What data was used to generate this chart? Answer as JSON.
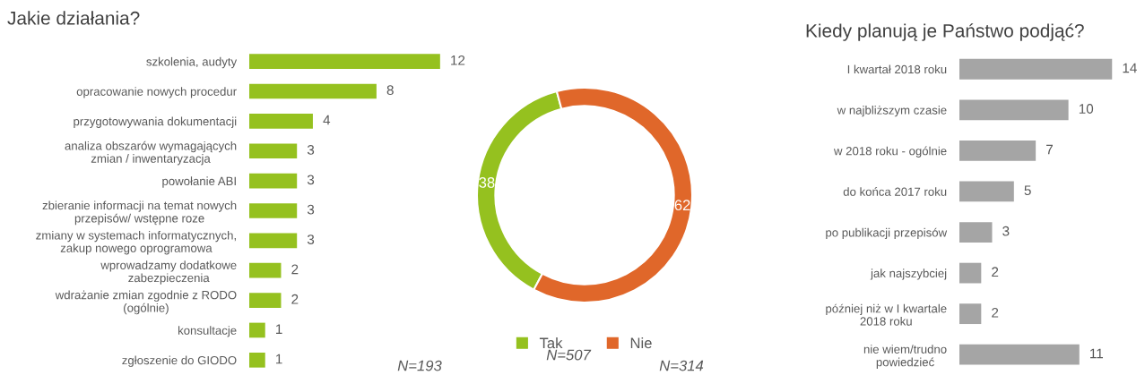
{
  "chart_data": [
    {
      "type": "bar",
      "orientation": "horizontal",
      "title": "Jakie działania?",
      "categories": [
        "szkolenia, audyty",
        "opracowanie nowych procedur",
        "przygotowywania dokumentacji",
        "analiza obszarów wymagających\nzmian / inwentaryzacja",
        "powołanie ABI",
        "zbieranie informacji na temat nowych\nprzepisów/ wstępne roze",
        "zmiany w systemach informatycznych,\nzakup nowego oprogramowa",
        "wprowadzamy dodatkowe\nzabezpieczenia",
        "wdrażanie zmian zgodnie z RODO\n(ogólnie)",
        "konsultacje",
        "zgłoszenie do GIODO"
      ],
      "values": [
        12,
        8,
        4,
        3,
        3,
        3,
        3,
        2,
        2,
        1,
        1
      ],
      "color": "#95c11f",
      "data_labels": true
    },
    {
      "type": "donut",
      "categories": [
        "Tak",
        "Nie"
      ],
      "values": [
        38,
        62
      ],
      "colors": [
        "#95c11f",
        "#e0672a"
      ],
      "data_labels": true,
      "legend": "bottom",
      "annotations": [
        "N=193",
        "N=507",
        "N=314"
      ]
    },
    {
      "type": "bar",
      "orientation": "horizontal",
      "title": "Kiedy planują je Państwo podjąć?",
      "categories": [
        "I kwartał 2018 roku",
        "w najbliższym czasie",
        "w 2018 roku - ogólnie",
        "do końca 2017 roku",
        "po publikacji przepisów",
        "jak najszybciej",
        "później niż w I kwartale\n2018 roku",
        "nie wiem/trudno\npowiedzieć"
      ],
      "values": [
        14,
        10,
        7,
        5,
        3,
        2,
        2,
        11
      ],
      "color": "#a5a5a5",
      "data_labels": true
    }
  ]
}
